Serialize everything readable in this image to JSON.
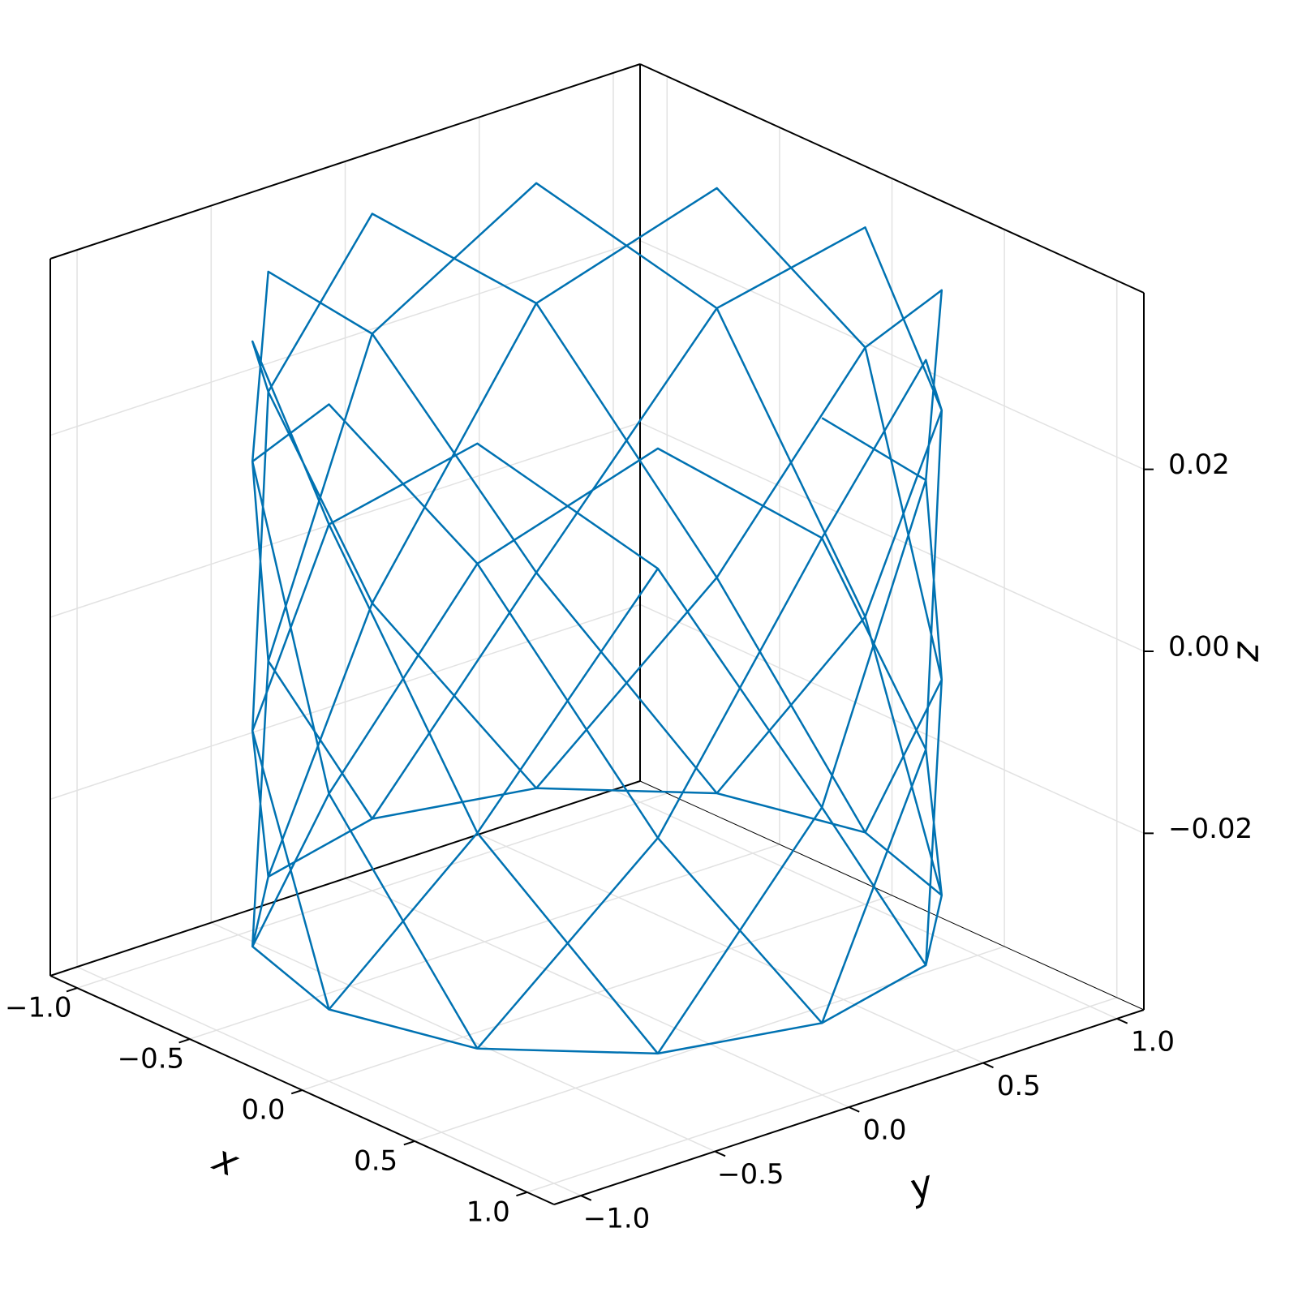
{
  "chart_data": {
    "type": "line3d",
    "xlabel": "x",
    "ylabel": "y",
    "zlabel": "z",
    "color": "#0072b2",
    "grid": true,
    "xlim": [
      -1.12,
      1.12
    ],
    "ylim": [
      -1.1,
      1.1
    ],
    "zlim": [
      -0.0394,
      0.0394
    ],
    "xticks": [
      {
        "value": -1.0,
        "label": "−1.0"
      },
      {
        "value": -0.5,
        "label": "−0.5"
      },
      {
        "value": 0,
        "label": "0.0"
      },
      {
        "value": 0.5,
        "label": "0.5"
      },
      {
        "value": 1.0,
        "label": "1.0"
      }
    ],
    "yticks": [
      {
        "value": -1.0,
        "label": "−1.0"
      },
      {
        "value": -0.5,
        "label": "−0.5"
      },
      {
        "value": 0,
        "label": "0.0"
      },
      {
        "value": 0.5,
        "label": "0.5"
      },
      {
        "value": 1.0,
        "label": "1.0"
      }
    ],
    "zticks": [
      {
        "value": -0.02,
        "label": "−0.02"
      },
      {
        "value": 0,
        "label": "0.00"
      },
      {
        "value": 0.02,
        "label": "0.02"
      }
    ],
    "x": [
      1,
      0.866,
      0.5,
      0,
      -0.5,
      -0.866,
      -1,
      -0.866,
      -0.5,
      0,
      0.5,
      0.866,
      1,
      0.866,
      0.5,
      0,
      -0.5,
      -0.866,
      -1,
      -0.866,
      -0.5,
      0,
      0.5,
      0.866,
      1,
      0.866,
      0.5,
      0,
      -0.5,
      -0.866,
      -1,
      -0.866,
      -0.5,
      0,
      0.5,
      0.866,
      1,
      0.866,
      0.5,
      0,
      -0.5,
      -0.866,
      -1,
      -0.866,
      -0.5,
      0,
      0.5,
      0.866,
      1,
      0.866,
      0.5,
      0,
      -0.5,
      -0.866,
      -1,
      -0.866,
      -0.5,
      0,
      0.5,
      0.866,
      1,
      0.866,
      0.5,
      0,
      -0.5,
      -0.866,
      -1,
      -0.866,
      -0.5,
      0,
      0.5,
      0.866,
      1,
      0.866,
      0.5,
      0,
      -0.5,
      -0.866,
      -1,
      -0.866,
      -0.5,
      0,
      0.5,
      0.866
    ],
    "y": [
      0,
      0.5,
      0.866,
      1,
      0.866,
      0.5,
      0,
      -0.5,
      -0.866,
      -1,
      -0.866,
      -0.5,
      0,
      0.5,
      0.866,
      1,
      0.866,
      0.5,
      0,
      -0.5,
      -0.866,
      -1,
      -0.866,
      -0.5,
      0,
      0.5,
      0.866,
      1,
      0.866,
      0.5,
      0,
      -0.5,
      -0.866,
      -1,
      -0.866,
      -0.5,
      0,
      0.5,
      0.866,
      1,
      0.866,
      0.5,
      0,
      -0.5,
      -0.866,
      -1,
      -0.866,
      -0.5,
      0,
      0.5,
      0.866,
      1,
      0.866,
      0.5,
      0,
      -0.5,
      -0.866,
      -1,
      -0.866,
      -0.5,
      0,
      0.5,
      0.866,
      1,
      0.866,
      0.5,
      0,
      -0.5,
      -0.866,
      -1,
      -0.866,
      -0.5,
      0,
      0.5,
      0.866,
      1,
      0.866,
      0.5,
      0,
      -0.5,
      -0.866,
      -1,
      -0.866,
      -0.5
    ],
    "z": [
      0.035,
      0.0218,
      -0.0078,
      -0.0315,
      -0.0315,
      -0.0078,
      0.0218,
      0.035,
      0.0218,
      -0.0078,
      -0.0315,
      -0.0315,
      -0.0078,
      0.0218,
      0.035,
      0.0218,
      -0.0078,
      -0.0315,
      -0.0315,
      -0.0078,
      0.0218,
      0.035,
      0.0218,
      -0.0078,
      -0.0315,
      -0.0315,
      -0.0078,
      0.0218,
      0.035,
      0.0218,
      -0.0078,
      -0.0315,
      -0.0315,
      -0.0078,
      0.0218,
      0.035,
      0.0218,
      -0.0078,
      -0.0315,
      -0.0315,
      -0.0078,
      0.0218,
      0.035,
      0.0218,
      -0.0078,
      -0.0315,
      -0.0315,
      -0.0078,
      0.0218,
      0.035,
      0.0218,
      -0.0078,
      -0.0315,
      -0.0315,
      -0.0078,
      0.0218,
      0.035,
      0.0218,
      -0.0078,
      -0.0315,
      -0.0315,
      -0.0078,
      0.0218,
      0.035,
      0.0218,
      -0.0078,
      -0.0315,
      -0.0315,
      -0.0078,
      0.0218,
      0.035,
      0.0218,
      -0.0078,
      -0.0315,
      -0.0315,
      -0.0078,
      0.0218,
      0.035,
      0.0218,
      -0.0078,
      -0.0315,
      -0.0315,
      -0.0078,
      0.0218
    ]
  }
}
